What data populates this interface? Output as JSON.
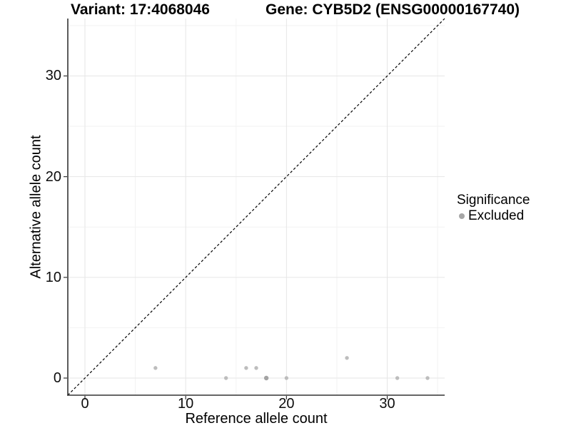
{
  "titles": {
    "variant": "Variant: 17:4068046",
    "gene": "Gene: CYB5D2 (ENSG00000167740)"
  },
  "chart_data": {
    "type": "scatter",
    "title": "Variant: 17:4068046 / Gene: CYB5D2 (ENSG00000167740)",
    "xlabel": "Reference allele count",
    "ylabel": "Alternative allele count",
    "xlim": [
      -1.7,
      35.7
    ],
    "ylim": [
      -1.7,
      35.7
    ],
    "x_ticks": [
      0,
      10,
      20,
      30
    ],
    "y_ticks": [
      0,
      10,
      20,
      30
    ],
    "x_minor_ticks": [
      5,
      15,
      25,
      35
    ],
    "y_minor_ticks": [
      5,
      15,
      25,
      35
    ],
    "grid": true,
    "points": [
      {
        "x": 7,
        "y": 1
      },
      {
        "x": 14,
        "y": 0
      },
      {
        "x": 16,
        "y": 1
      },
      {
        "x": 17,
        "y": 1
      },
      {
        "x": 18,
        "y": 0,
        "overlap": true
      },
      {
        "x": 20,
        "y": 0
      },
      {
        "x": 26,
        "y": 2
      },
      {
        "x": 31,
        "y": 0
      },
      {
        "x": 34,
        "y": 0
      }
    ],
    "identity_line": {
      "style": "dashed",
      "from": [
        -1.7,
        -1.7
      ],
      "to": [
        35.7,
        35.7
      ]
    },
    "legend": {
      "title": "Significance",
      "position": "right",
      "items": [
        {
          "label": "Excluded",
          "color": "#a6a6a6"
        }
      ]
    }
  },
  "colors": {
    "background": "#ffffff",
    "grid_major": "#e6e6e6",
    "grid_minor": "#f2f2f2",
    "axis_line": "#333333",
    "tick_mark": "#333333",
    "text": "#000000",
    "point": "#bdbdbd",
    "point_overlap": "#a3a3a3",
    "legend_point": "#a6a6a6",
    "identity_line": "#000000"
  }
}
